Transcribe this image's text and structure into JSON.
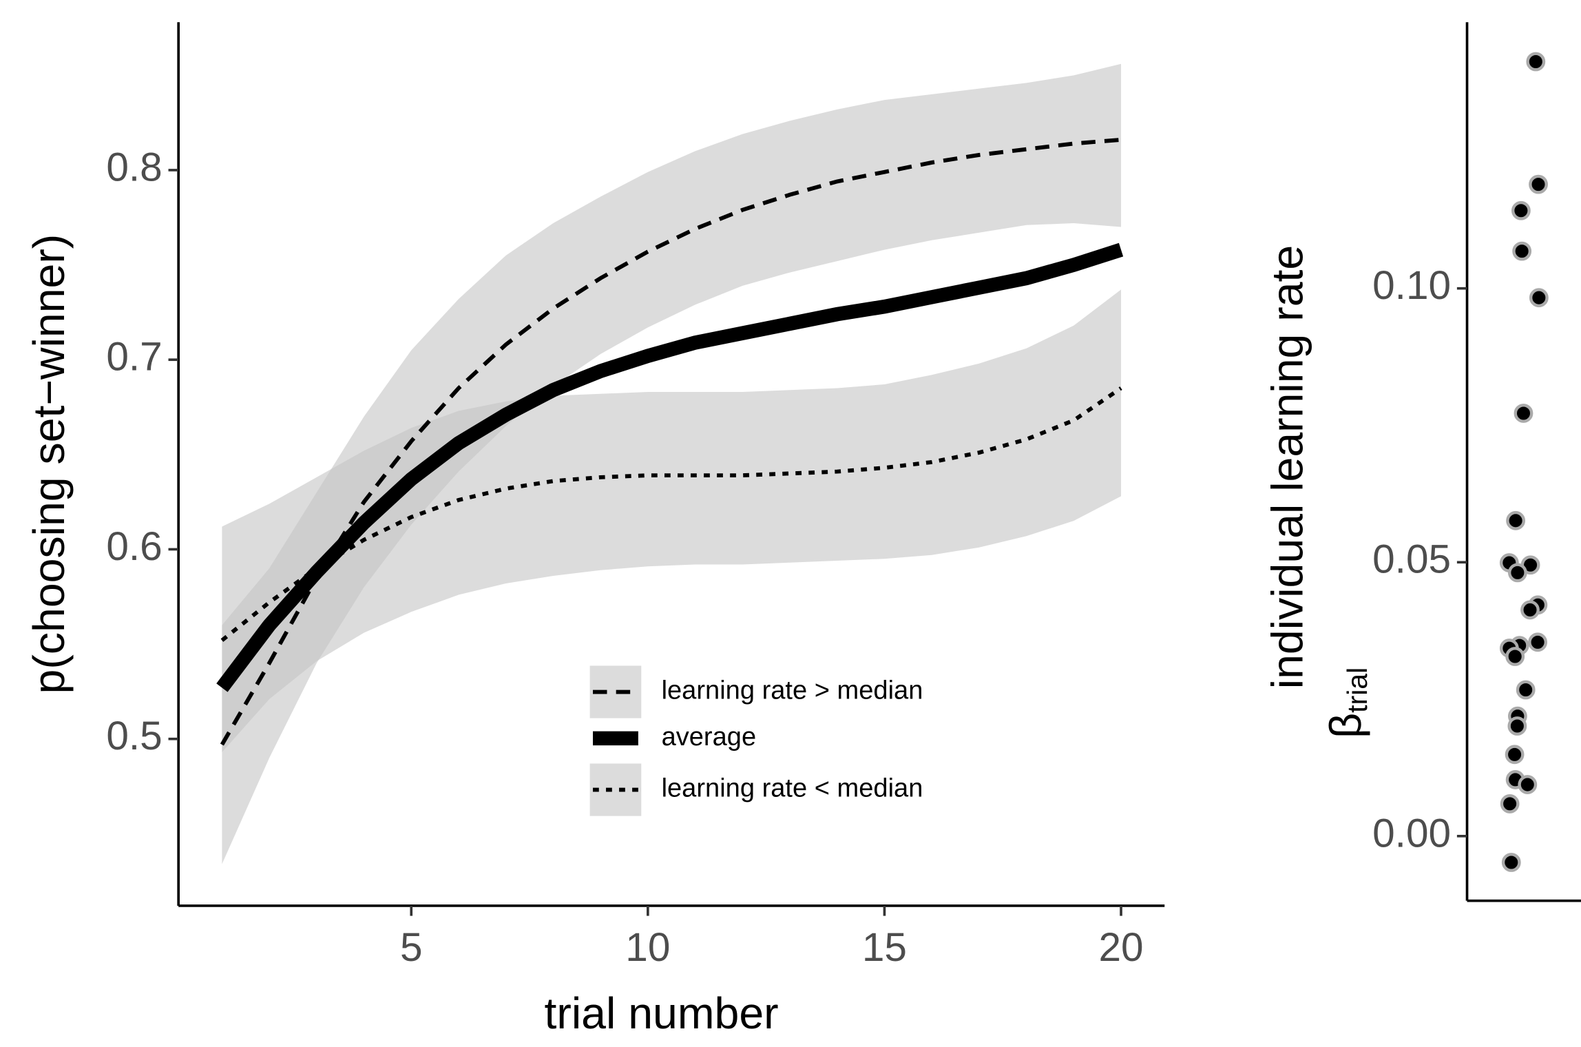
{
  "chart_data": [
    {
      "type": "line",
      "x_label": "trial number",
      "y_label": "p(choosing set−winner)",
      "x": [
        1,
        2,
        3,
        4,
        5,
        6,
        7,
        8,
        9,
        10,
        11,
        12,
        13,
        14,
        15,
        16,
        17,
        18,
        19,
        20
      ],
      "xlim": [
        0.08,
        20.92
      ],
      "xticks": [
        5,
        10,
        15,
        20
      ],
      "ylim": [
        0.412,
        0.878
      ],
      "yticks": [
        0.5,
        0.6,
        0.7,
        0.8
      ],
      "legend_position": "bottom-center",
      "ribbon_color": "#c4c4c4",
      "series": [
        {
          "name": "learning rate > median",
          "color": "#000000",
          "linestyle": "dashed",
          "values": [
            0.497,
            0.54,
            0.585,
            0.625,
            0.657,
            0.685,
            0.708,
            0.727,
            0.743,
            0.757,
            0.769,
            0.779,
            0.787,
            0.794,
            0.799,
            0.804,
            0.808,
            0.811,
            0.814,
            0.816
          ],
          "lower": [
            0.434,
            0.49,
            0.54,
            0.58,
            0.613,
            0.641,
            0.665,
            0.686,
            0.703,
            0.717,
            0.729,
            0.739,
            0.746,
            0.752,
            0.758,
            0.763,
            0.767,
            0.771,
            0.772,
            0.77
          ],
          "upper": [
            0.56,
            0.59,
            0.63,
            0.67,
            0.705,
            0.732,
            0.755,
            0.772,
            0.786,
            0.799,
            0.81,
            0.819,
            0.826,
            0.832,
            0.837,
            0.84,
            0.843,
            0.846,
            0.85,
            0.856
          ]
        },
        {
          "name": "average",
          "color": "#000000",
          "linestyle": "solid",
          "values": [
            0.527,
            0.56,
            0.588,
            0.614,
            0.637,
            0.656,
            0.671,
            0.684,
            0.694,
            0.702,
            0.709,
            0.714,
            0.719,
            0.724,
            0.728,
            0.733,
            0.738,
            0.743,
            0.75,
            0.758
          ]
        },
        {
          "name": "learning rate < median",
          "color": "#000000",
          "linestyle": "dotted",
          "values": [
            0.552,
            0.572,
            0.59,
            0.605,
            0.617,
            0.626,
            0.632,
            0.636,
            0.638,
            0.639,
            0.639,
            0.639,
            0.64,
            0.641,
            0.643,
            0.646,
            0.651,
            0.658,
            0.668,
            0.685
          ],
          "lower": [
            0.493,
            0.521,
            0.541,
            0.556,
            0.567,
            0.576,
            0.582,
            0.586,
            0.589,
            0.591,
            0.592,
            0.592,
            0.593,
            0.594,
            0.595,
            0.597,
            0.601,
            0.607,
            0.615,
            0.628
          ],
          "upper": [
            0.612,
            0.624,
            0.638,
            0.652,
            0.664,
            0.673,
            0.678,
            0.681,
            0.682,
            0.683,
            0.683,
            0.683,
            0.684,
            0.685,
            0.687,
            0.692,
            0.698,
            0.706,
            0.718,
            0.737
          ]
        }
      ]
    },
    {
      "type": "strip",
      "y_label": "individual learning rate",
      "y_label_symbol": "β",
      "y_label_subscript": "trial",
      "ylim": [
        -0.0118,
        0.1486
      ],
      "yticks": [
        {
          "value": 0,
          "label": "0.00"
        },
        {
          "value": 0.05,
          "label": "0.05"
        },
        {
          "value": 0.1,
          "label": "0.10"
        }
      ],
      "color": "#000000",
      "edge_color": "#aaaaaa",
      "values": [
        0.1414,
        0.119,
        0.1142,
        0.1068,
        0.0983,
        0.0772,
        0.0576,
        0.0495,
        0.0499,
        0.0481,
        0.0422,
        0.0413,
        0.0354,
        0.0348,
        0.0343,
        0.0328,
        0.0267,
        0.0219,
        0.0201,
        0.0149,
        0.0103,
        0.0094,
        0.0059,
        -0.0048
      ]
    }
  ]
}
